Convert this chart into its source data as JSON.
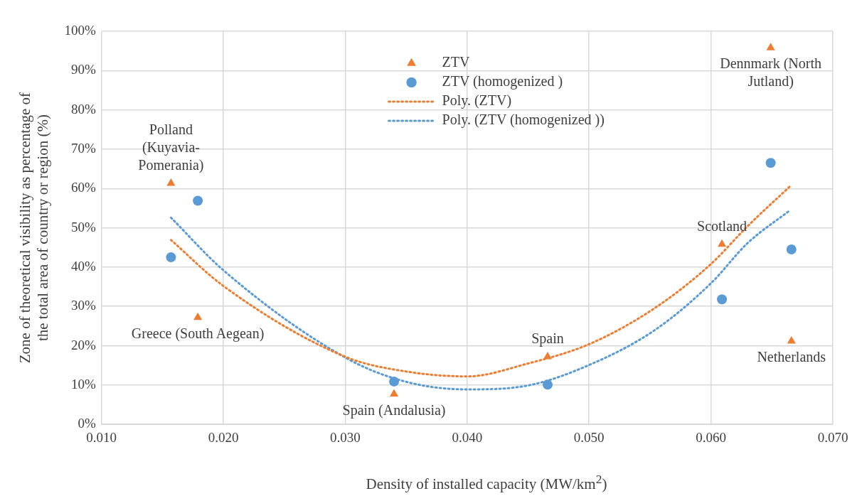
{
  "chart_data": {
    "type": "scatter",
    "xlabel": "Density of installed capacity (MW/km$^{2}$)",
    "ylabel": "Zone of theoretical visibility as percentage of the total area of country or region (%)",
    "xlim": [
      0.01,
      0.07
    ],
    "xticks": [
      {
        "value": 0.01,
        "label": "0.010"
      },
      {
        "value": 0.02,
        "label": "0.020"
      },
      {
        "value": 0.03,
        "label": "0.030"
      },
      {
        "value": 0.04,
        "label": "0.040"
      },
      {
        "value": 0.05,
        "label": "0.050"
      },
      {
        "value": 0.06,
        "label": "0.060"
      },
      {
        "value": 0.07,
        "label": "0.070"
      }
    ],
    "ylim": [
      0,
      100
    ],
    "yticks": [
      {
        "value": 0,
        "label": "0%"
      },
      {
        "value": 10,
        "label": "10%"
      },
      {
        "value": 20,
        "label": "20%"
      },
      {
        "value": 30,
        "label": "30%"
      },
      {
        "value": 40,
        "label": "40%"
      },
      {
        "value": 50,
        "label": "50%"
      },
      {
        "value": 60,
        "label": "60%"
      },
      {
        "value": 70,
        "label": "70%"
      },
      {
        "value": 80,
        "label": "80%"
      },
      {
        "value": 90,
        "label": "90%"
      },
      {
        "value": 100,
        "label": "100%"
      }
    ],
    "grid": true,
    "legend": "top",
    "series": [
      {
        "name": "ZTV",
        "type": "scatter",
        "marker": "triangle",
        "color": "#ed7d31",
        "x": [
          0.0157,
          0.0179,
          0.034,
          0.0466,
          0.0609,
          0.0649,
          0.0666
        ],
        "values": [
          61.3,
          27.2,
          7.7,
          17.2,
          45.8,
          95.8,
          21.2
        ]
      },
      {
        "name": "ZTV (homogenized )",
        "type": "scatter",
        "marker": "circle",
        "color": "#5b9bd5",
        "x": [
          0.0157,
          0.0179,
          0.034,
          0.0466,
          0.0609,
          0.0649,
          0.0666
        ],
        "values": [
          42.5,
          56.9,
          10.9,
          10.1,
          31.8,
          66.5,
          44.5
        ]
      },
      {
        "name": "Poly. (ZTV)",
        "type": "line",
        "marker": "none",
        "line_style": "dotted",
        "color": "#ed7d31",
        "x": [
          0.0157,
          0.02,
          0.03,
          0.0349,
          0.04,
          0.045,
          0.05,
          0.0554,
          0.06,
          0.063,
          0.0665
        ],
        "values": [
          46.9,
          35.2,
          17.2,
          13.5,
          12.2,
          15.5,
          20.4,
          29.6,
          40.8,
          50.4,
          60.6
        ]
      },
      {
        "name": "Poly. (ZTV (homogenized ))",
        "type": "line",
        "marker": "none",
        "line_style": "dotted",
        "color": "#5b9bd5",
        "x": [
          0.0157,
          0.02,
          0.03,
          0.0349,
          0.04,
          0.045,
          0.05,
          0.0554,
          0.06,
          0.063,
          0.0665
        ],
        "values": [
          52.6,
          39.2,
          17.0,
          10.9,
          8.9,
          9.9,
          15.1,
          24.0,
          35.9,
          46.1,
          54.5
        ]
      }
    ],
    "annotations": [
      {
        "text": "Polland (Kuyavia-Pomerania)",
        "x": 0.0157,
        "y": 61.3
      },
      {
        "text": "Greece (South Aegean)",
        "x": 0.0179,
        "y": 27.2
      },
      {
        "text": "Spain (Andalusia)",
        "x": 0.034,
        "y": 7.7
      },
      {
        "text": "Spain",
        "x": 0.0466,
        "y": 17.2
      },
      {
        "text": "Scotland",
        "x": 0.0609,
        "y": 45.8
      },
      {
        "text": "Dennmark (North Jutland)",
        "x": 0.0649,
        "y": 95.8
      },
      {
        "text": "Netherlands",
        "x": 0.0666,
        "y": 21.2
      }
    ]
  }
}
